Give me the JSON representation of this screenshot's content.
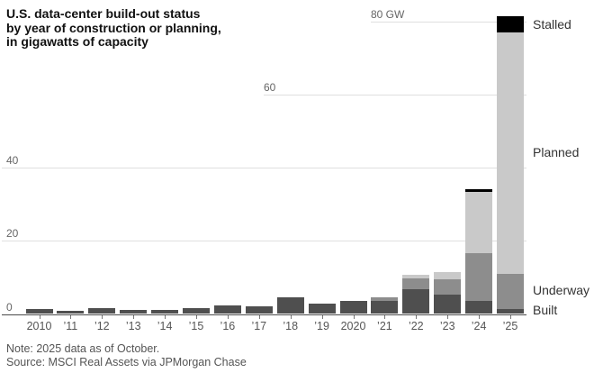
{
  "title": {
    "line1": "U.S. data-center build-out status",
    "line2": "by year of construction or planning,",
    "line3": "in gigawatts of capacity"
  },
  "chart_data": {
    "type": "bar",
    "stacked": true,
    "unit": "GW",
    "title": "U.S. data-center build-out status by year of construction or planning, in gigawatts of capacity",
    "categories": [
      "2010",
      "’11",
      "’12",
      "’13",
      "’14",
      "’15",
      "’16",
      "’17",
      "’18",
      "’19",
      "2020",
      "’21",
      "’22",
      "’23",
      "’24",
      "’25"
    ],
    "series": [
      {
        "name": "Built",
        "color": "#4f4f4f",
        "values": [
          1.3,
          0.9,
          1.6,
          1.2,
          1.0,
          1.7,
          2.3,
          2.0,
          4.5,
          2.8,
          3.5,
          3.6,
          6.9,
          5.4,
          3.5,
          1.3
        ]
      },
      {
        "name": "Underway",
        "color": "#8d8d8d",
        "values": [
          0,
          0,
          0,
          0,
          0,
          0,
          0,
          0,
          0,
          0,
          0,
          1.0,
          2.9,
          4.1,
          13.2,
          9.7
        ]
      },
      {
        "name": "Planned",
        "color": "#c9c9c9",
        "values": [
          0,
          0,
          0,
          0,
          0,
          0,
          0,
          0,
          0,
          0,
          0,
          0,
          0.9,
          2.0,
          16.7,
          66.0
        ]
      },
      {
        "name": "Stalled",
        "color": "#000000",
        "values": [
          0,
          0,
          0,
          0,
          0,
          0,
          0,
          0,
          0,
          0,
          0,
          0,
          0,
          0,
          0.7,
          4.5
        ]
      }
    ],
    "ylim": [
      0,
      80
    ],
    "yticks": [
      {
        "value": 0,
        "label": "0"
      },
      {
        "value": 20,
        "label": "20"
      },
      {
        "value": 40,
        "label": "40"
      },
      {
        "value": 60,
        "label": "60"
      },
      {
        "value": 80,
        "label": "80 GW"
      }
    ],
    "grid": "horizontal",
    "legend_position": "right"
  },
  "footer": {
    "note": "Note: 2025 data as of October.",
    "source": "Source: MSCI Real Assets via JPMorgan Chase"
  }
}
